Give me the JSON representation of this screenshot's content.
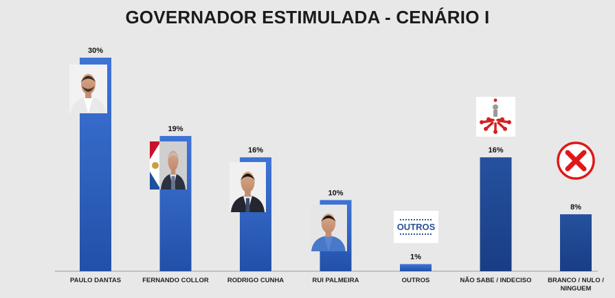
{
  "chart_data": {
    "type": "bar",
    "title": "GOVERNADOR ESTIMULADA - CENÁRIO I",
    "categories": [
      "PAULO DANTAS",
      "FERNANDO COLLOR",
      "RODRIGO CUNHA",
      "RUI PALMEIRA",
      "OUTROS",
      "NÃO SABE / INDECISO",
      "BRANCO / NULO / NINGUEM"
    ],
    "category_lines": [
      [
        "PAULO DANTAS"
      ],
      [
        "FERNANDO COLLOR"
      ],
      [
        "RODRIGO CUNHA"
      ],
      [
        "RUI PALMEIRA"
      ],
      [
        "OUTROS"
      ],
      [
        "NÃO SABE / INDECISO"
      ],
      [
        "BRANCO / NULO /",
        "NINGUEM"
      ]
    ],
    "values": [
      30,
      19,
      16,
      10,
      1,
      16,
      8
    ],
    "value_labels": [
      "30%",
      "19%",
      "16%",
      "10%",
      "1%",
      "16%",
      "8%"
    ],
    "ylim": [
      0,
      30
    ],
    "grid": false,
    "legend": "none",
    "colors": {
      "bar_top": "#3a6fd0",
      "bar_bottom": "#1f4aa0",
      "bar_dark": "#1c3f8c",
      "background": "#e8e8e8"
    },
    "badges": {
      "outros": "OUTROS"
    },
    "icons": [
      "candidate-photo",
      "candidate-photo",
      "candidate-photo",
      "candidate-photo",
      "outros-badge",
      "undecided-arrows-icon",
      "red-x-icon"
    ]
  }
}
